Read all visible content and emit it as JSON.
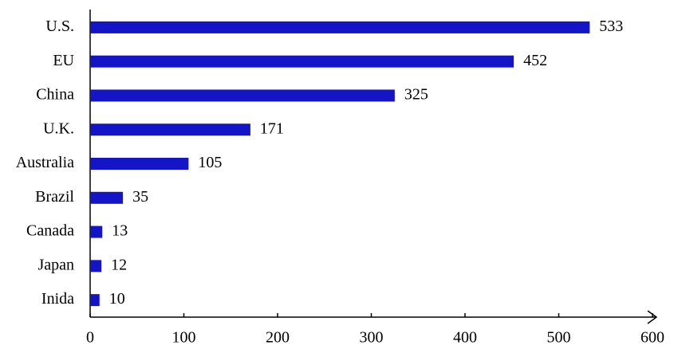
{
  "chart_data": {
    "type": "hbar",
    "categories": [
      "U.S.",
      "EU",
      "China",
      "U.K.",
      "Australia",
      "Brazil",
      "Canada",
      "Japan",
      "Inida"
    ],
    "values": [
      533,
      452,
      325,
      171,
      105,
      35,
      13,
      12,
      10
    ],
    "color": "#1515c8",
    "xlim": [
      0,
      600
    ],
    "xticks": [
      0,
      100,
      200,
      300,
      400,
      500,
      600
    ]
  }
}
